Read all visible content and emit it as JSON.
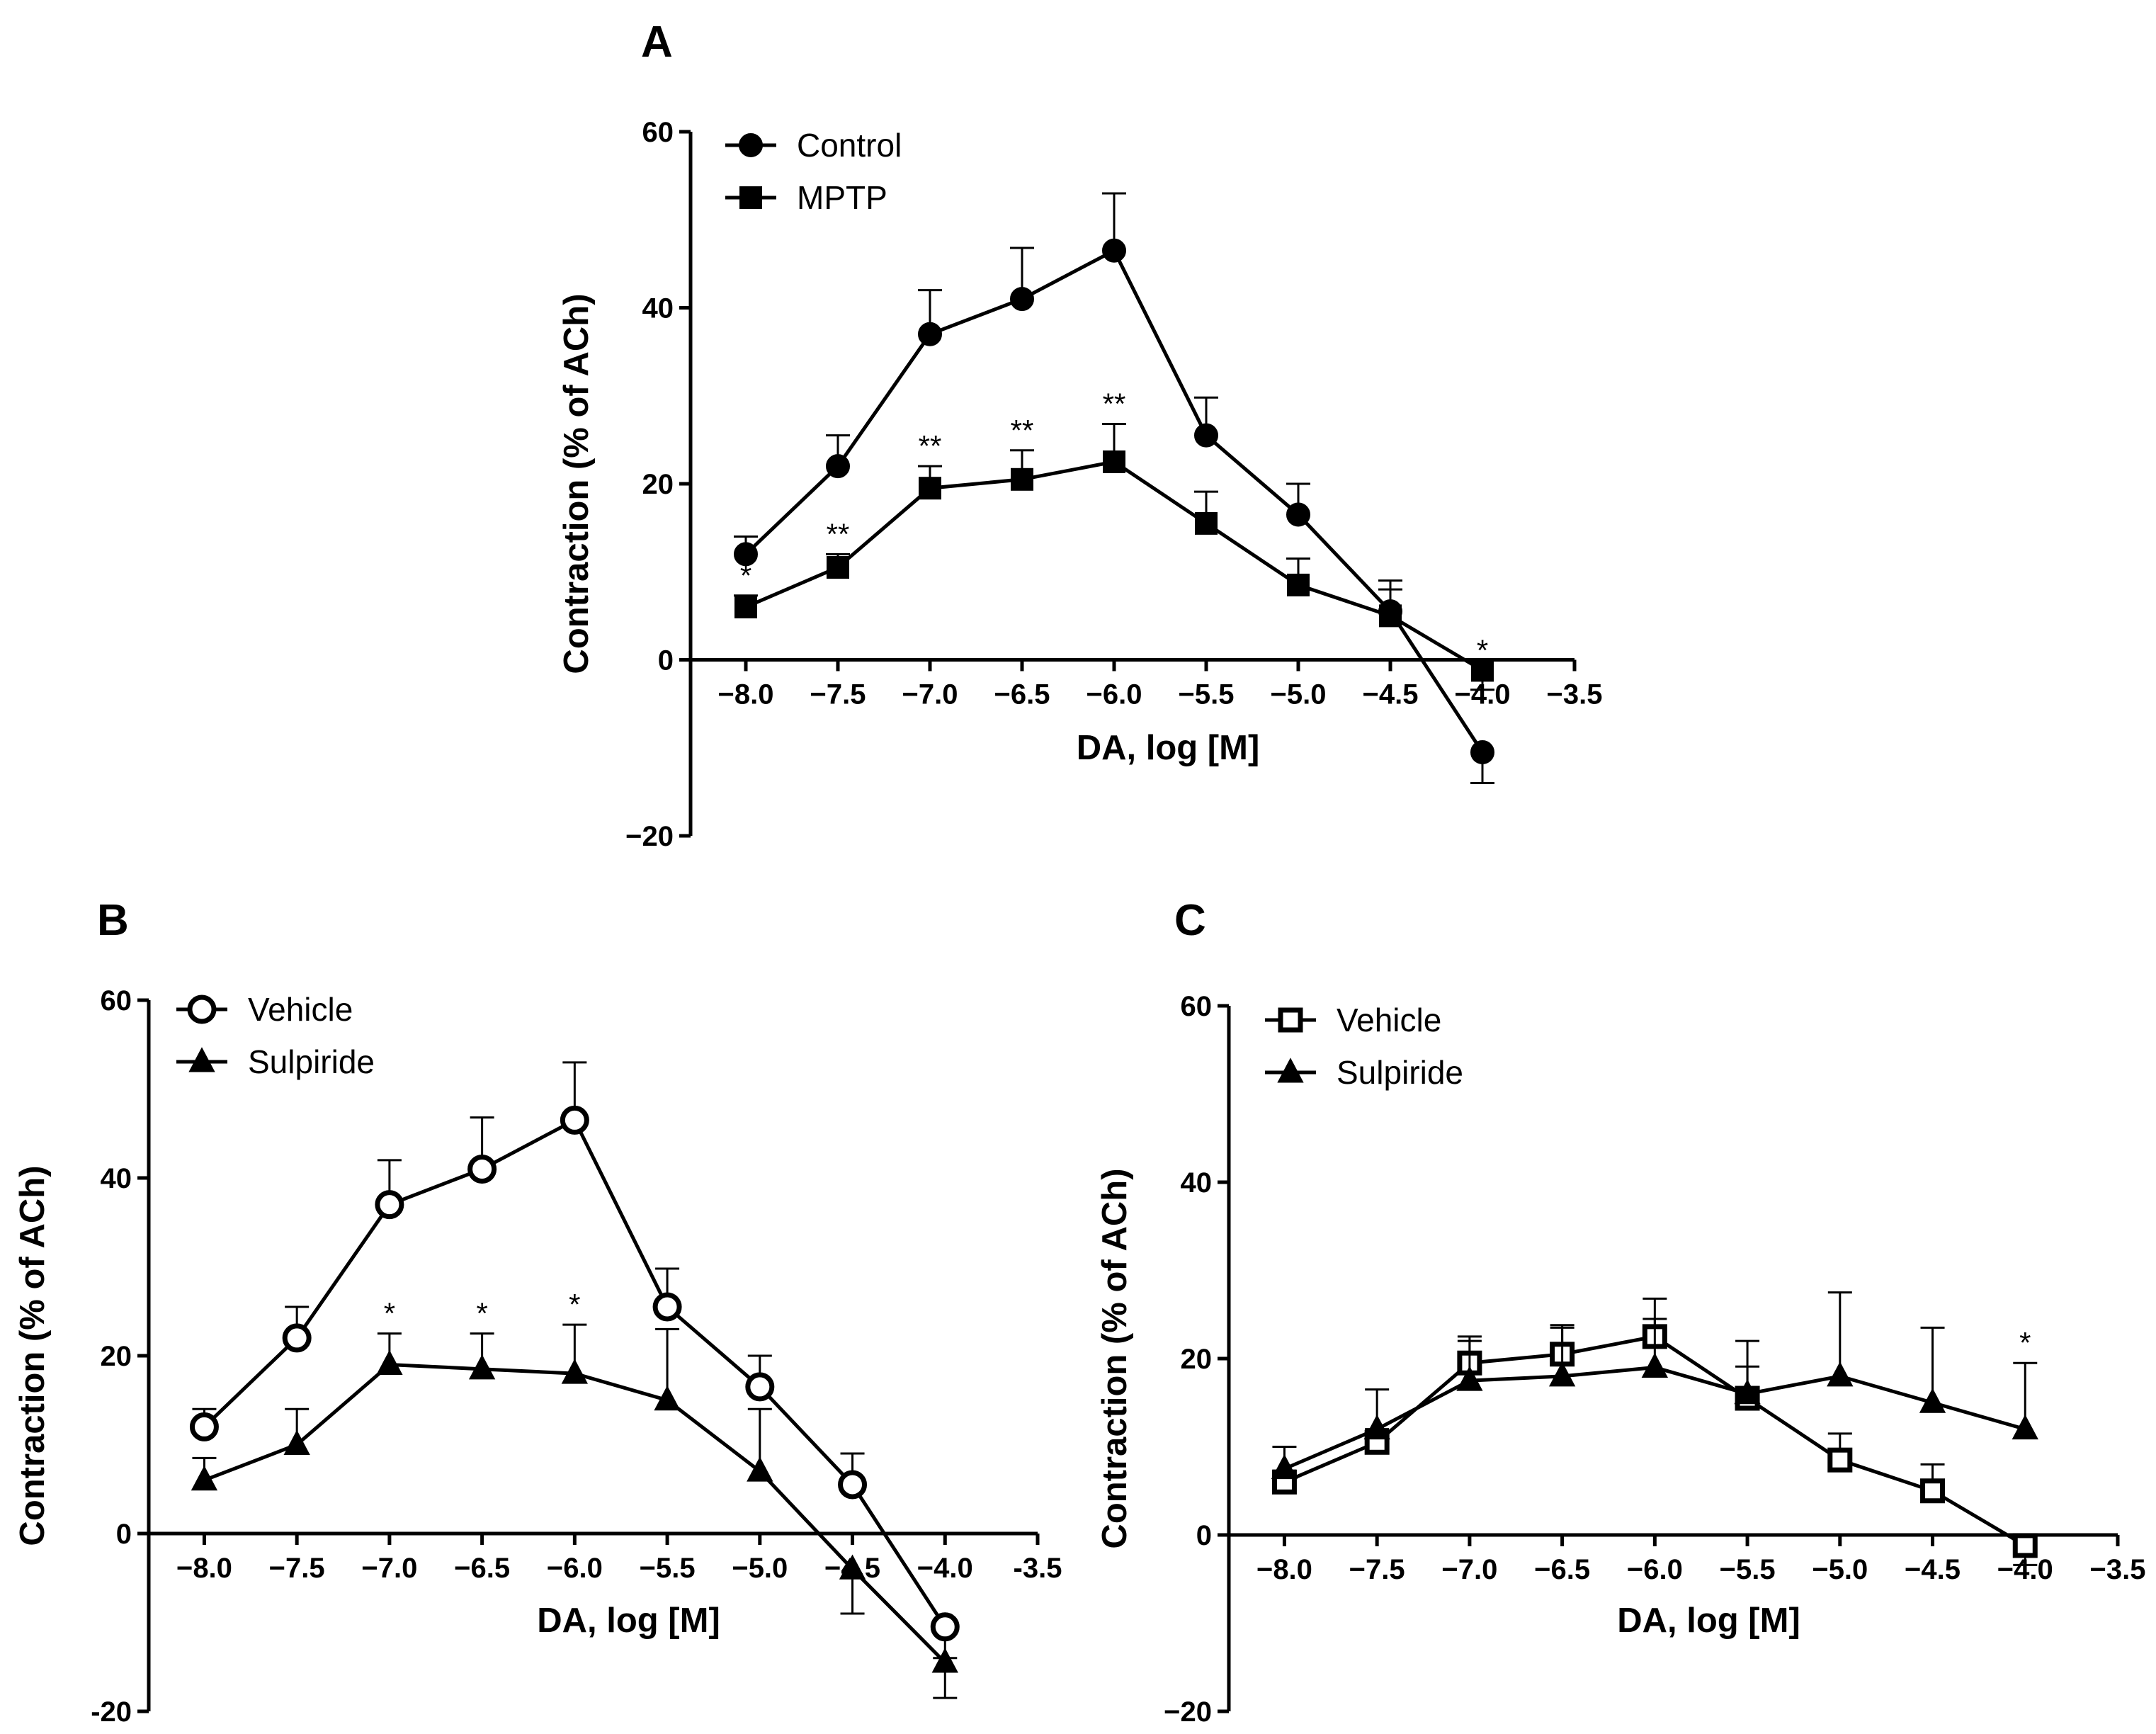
{
  "chart_data": [
    {
      "panel": "A",
      "type": "line",
      "xlabel": "DA, log [M]",
      "ylabel": "Contraction (% of ACh)",
      "xlim": [
        -8.3,
        -3.5
      ],
      "ylim": [
        -20,
        60
      ],
      "xticks": [
        -8.0,
        -7.5,
        -7.0,
        -6.5,
        -6.0,
        -5.5,
        -5.0,
        -4.5,
        -4.0,
        -3.5
      ],
      "xtick_labels": [
        "−8.0",
        "−7.5",
        "−7.0",
        "−6.5",
        "−6.0",
        "−5.5",
        "−5.0",
        "−4.5",
        "−4.0",
        "−3.5"
      ],
      "yticks": [
        -20,
        0,
        20,
        40,
        60
      ],
      "ytick_labels": [
        "−20",
        "0",
        "20",
        "40",
        "60"
      ],
      "legend_position": "top-left",
      "grid": false,
      "x": [
        -8.0,
        -7.5,
        -7.0,
        -6.5,
        -6.0,
        -5.5,
        -5.0,
        -4.5,
        -4.0
      ],
      "series": [
        {
          "name": "Control",
          "marker": "circle",
          "filled": true,
          "values": [
            12,
            22,
            37,
            41,
            46.5,
            25.5,
            16.5,
            5.5,
            -10.5
          ],
          "error": [
            2,
            3.5,
            5,
            5.8,
            6.5,
            4.3,
            3.5,
            3.5,
            3.5
          ]
        },
        {
          "name": "MPTP",
          "marker": "square",
          "filled": true,
          "values": [
            6,
            10.5,
            19.5,
            20.5,
            22.5,
            15.5,
            8.5,
            5,
            -1.2
          ],
          "error": [
            1.3,
            1.5,
            2.5,
            3.3,
            4.3,
            3.6,
            3,
            3,
            2.2
          ]
        }
      ],
      "annotations": [
        {
          "x": -8.0,
          "y": 6,
          "text": "*"
        },
        {
          "x": -7.5,
          "y": 10.5,
          "text": "**"
        },
        {
          "x": -7.0,
          "y": 19.5,
          "text": "**"
        },
        {
          "x": -6.5,
          "y": 20.5,
          "text": "**"
        },
        {
          "x": -6.0,
          "y": 22.5,
          "text": "**"
        },
        {
          "x": -4.0,
          "y": -1.2,
          "text": "*"
        }
      ]
    },
    {
      "panel": "B",
      "type": "line",
      "xlabel": "DA, log [M]",
      "ylabel": "Contraction (% of ACh)",
      "xlim": [
        -8.3,
        -3.5
      ],
      "ylim": [
        -20,
        60
      ],
      "xticks": [
        -8.0,
        -7.5,
        -7.0,
        -6.5,
        -6.0,
        -5.5,
        -5.0,
        -4.5,
        -4.0,
        -3.5
      ],
      "xtick_labels": [
        "−8.0",
        "−7.5",
        "−7.0",
        "−6.5",
        "−6.0",
        "−5.5",
        "−5.0",
        "−4.5",
        "−4.0",
        "-3.5"
      ],
      "yticks": [
        -20,
        0,
        20,
        40,
        60
      ],
      "ytick_labels": [
        "-20",
        "0",
        "20",
        "40",
        "60"
      ],
      "legend_position": "top-left",
      "grid": false,
      "x": [
        -8.0,
        -7.5,
        -7.0,
        -6.5,
        -6.0,
        -5.5,
        -5.0,
        -4.5,
        -4.0
      ],
      "series": [
        {
          "name": "Vehicle",
          "marker": "circle",
          "filled": false,
          "values": [
            12,
            22,
            37,
            41,
            46.5,
            25.5,
            16.5,
            5.5,
            -10.5
          ],
          "error": [
            2,
            3.5,
            5,
            5.8,
            6.5,
            4.3,
            3.5,
            3.5,
            3.5
          ]
        },
        {
          "name": "Sulpiride",
          "marker": "triangle",
          "filled": true,
          "values": [
            6,
            10,
            19,
            18.5,
            18,
            15,
            7,
            -4,
            -14.5
          ],
          "error": [
            2.5,
            4,
            3.5,
            4,
            5.5,
            8,
            7,
            5,
            4
          ]
        }
      ],
      "annotations": [
        {
          "x": -7.0,
          "y": 19,
          "text": "*"
        },
        {
          "x": -6.5,
          "y": 18.5,
          "text": "*"
        },
        {
          "x": -6.0,
          "y": 18,
          "text": "*"
        }
      ]
    },
    {
      "panel": "C",
      "type": "line",
      "xlabel": "DA, log [M]",
      "ylabel": "Contraction (% of ACh)",
      "xlim": [
        -8.3,
        -3.5
      ],
      "ylim": [
        -20,
        60
      ],
      "xticks": [
        -8.0,
        -7.5,
        -7.0,
        -6.5,
        -6.0,
        -5.5,
        -5.0,
        -4.5,
        -4.0,
        -3.5
      ],
      "xtick_labels": [
        "−8.0",
        "−7.5",
        "−7.0",
        "−6.5",
        "−6.0",
        "−5.5",
        "−5.0",
        "−4.5",
        "−4.0",
        "−3.5"
      ],
      "yticks": [
        -20,
        0,
        20,
        40,
        60
      ],
      "ytick_labels": [
        "−20",
        "0",
        "20",
        "40",
        "60"
      ],
      "legend_position": "top-left",
      "grid": false,
      "x": [
        -8.0,
        -7.5,
        -7.0,
        -6.5,
        -6.0,
        -5.5,
        -5.0,
        -4.5,
        -4.0
      ],
      "series": [
        {
          "name": "Vehicle",
          "marker": "square",
          "filled": false,
          "values": [
            6,
            10.5,
            19.5,
            20.5,
            22.5,
            15.5,
            8.5,
            5,
            -1.2
          ],
          "error": [
            1.3,
            1.5,
            2.5,
            3.3,
            4.3,
            3.6,
            3,
            3,
            2.2
          ]
        },
        {
          "name": "Sulpiride",
          "marker": "triangle",
          "filled": true,
          "values": [
            7.5,
            12,
            17.5,
            18,
            19,
            16,
            18,
            15,
            12
          ],
          "error": [
            2.5,
            4.5,
            5,
            5.5,
            5.5,
            6,
            9.5,
            8.5,
            7.5
          ]
        }
      ],
      "annotations": [
        {
          "x": -4.0,
          "y": 12,
          "text": "*"
        }
      ]
    }
  ]
}
